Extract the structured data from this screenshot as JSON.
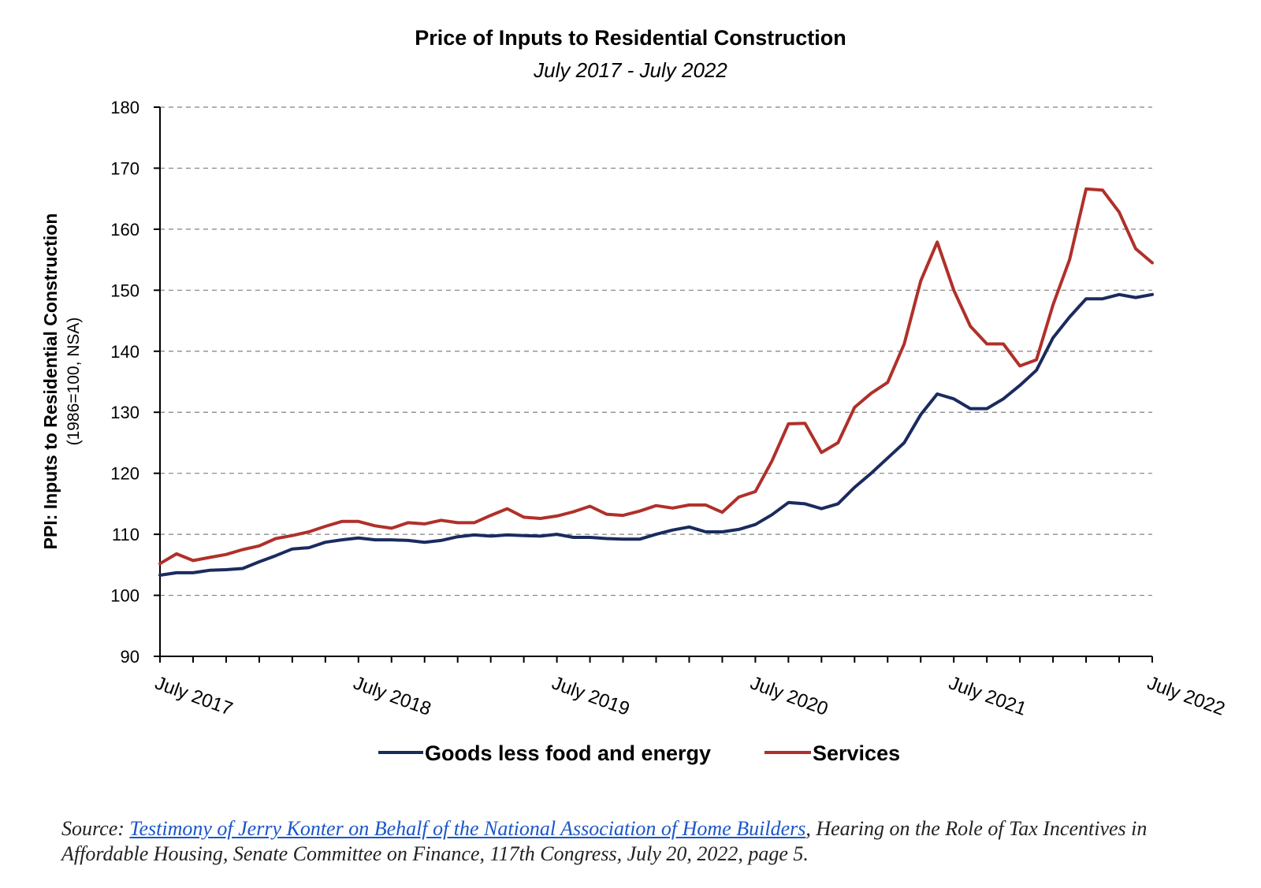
{
  "chart_data": {
    "type": "line",
    "title": "Price of Inputs to Residential Construction",
    "subtitle": "July 2017 - July 2022",
    "ylabel": "PPI: Inputs to Residential Construction",
    "ylabel_sub": "(1986=100, NSA)",
    "xlabel": "",
    "ylim": [
      90,
      180
    ],
    "yticks": [
      90,
      100,
      110,
      120,
      130,
      140,
      150,
      160,
      170,
      180
    ],
    "x_tick_labels": [
      "July 2017",
      "July 2018",
      "July 2019",
      "July 2020",
      "July 2021",
      "July 2022"
    ],
    "x_tick_months": [
      0,
      12,
      24,
      36,
      48,
      60
    ],
    "grid": "horizontal dashed",
    "legend_position": "bottom",
    "series": [
      {
        "name": "Goods less food and energy",
        "color": "#1a2b5e",
        "values": [
          103.3,
          103.7,
          103.7,
          104.1,
          104.2,
          104.4,
          105.5,
          106.5,
          107.6,
          107.8,
          108.7,
          109.1,
          109.4,
          109.1,
          109.1,
          109.0,
          108.7,
          109.0,
          109.6,
          109.9,
          109.7,
          109.9,
          109.8,
          109.7,
          110.0,
          109.5,
          109.5,
          109.3,
          109.2,
          109.2,
          110.0,
          110.7,
          111.2,
          110.4,
          110.4,
          110.8,
          111.6,
          113.2,
          115.2,
          115.0,
          114.2,
          115.0,
          117.7,
          120.0,
          122.5,
          125.0,
          129.6,
          133.0,
          132.2,
          130.6,
          130.6,
          132.2,
          134.4,
          136.9,
          142.2,
          145.6,
          148.6,
          148.6,
          149.3,
          148.8,
          149.3
        ]
      },
      {
        "name": "Services",
        "color": "#b0302a",
        "values": [
          105.2,
          106.8,
          105.7,
          106.2,
          106.7,
          107.5,
          108.1,
          109.3,
          109.8,
          110.4,
          111.3,
          112.1,
          112.1,
          111.4,
          111.0,
          111.9,
          111.7,
          112.3,
          111.9,
          111.9,
          113.1,
          114.2,
          112.8,
          112.6,
          113.0,
          113.7,
          114.6,
          113.3,
          113.1,
          113.8,
          114.7,
          114.3,
          114.8,
          114.8,
          113.6,
          116.1,
          117.0,
          122.0,
          128.1,
          128.2,
          123.4,
          125.0,
          130.8,
          133.1,
          134.9,
          141.2,
          151.5,
          157.9,
          150.0,
          144.1,
          141.2,
          141.2,
          137.6,
          138.6,
          147.6,
          155.0,
          166.6,
          166.4,
          162.8,
          156.8,
          154.5
        ]
      }
    ]
  },
  "source": {
    "prefix": "Source: ",
    "link_text": "Testimony of Jerry Konter on Behalf of the National Association of Home Builders",
    "suffix": ", Hearing on the Role of Tax Incentives in Affordable Housing, Senate Committee on Finance, 117th Congress, July 20, 2022, page 5."
  }
}
